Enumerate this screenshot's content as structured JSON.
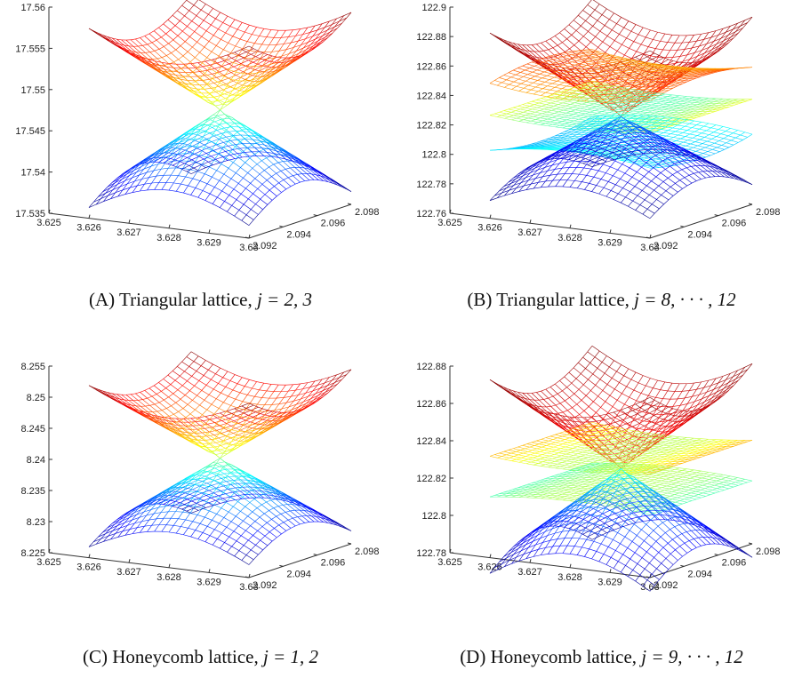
{
  "chart_data": [
    {
      "type": "surface",
      "caption": {
        "label": "(A)",
        "text": "Triangular lattice, ",
        "math": "j = 2, 3"
      },
      "x_ticks": [
        "3.625",
        "3.626",
        "3.627",
        "3.628",
        "3.629",
        "3.63"
      ],
      "y_ticks": [
        "2.092",
        "2.094",
        "2.096",
        "2.098"
      ],
      "z_ticks": [
        "17.535",
        "17.54",
        "17.545",
        "17.55",
        "17.555",
        "17.56"
      ],
      "zlim": [
        17.535,
        17.56
      ],
      "sheets": [
        {
          "shape": "cone_up",
          "center": 17.547,
          "amplitude": 0.0105,
          "color_range": [
            0.55,
            1.0
          ]
        },
        {
          "shape": "cone_down",
          "center": 17.547,
          "amplitude": 0.0105,
          "color_range": [
            0.0,
            0.5
          ]
        }
      ]
    },
    {
      "type": "surface",
      "caption": {
        "label": "(B)",
        "text": "Triangular lattice, ",
        "math": "j = 8, · · · , 12"
      },
      "x_ticks": [
        "3.625",
        "3.626",
        "3.627",
        "3.628",
        "3.629",
        "3.63"
      ],
      "y_ticks": [
        "2.092",
        "2.094",
        "2.096",
        "2.098"
      ],
      "z_ticks": [
        "122.76",
        "122.78",
        "122.8",
        "122.82",
        "122.84",
        "122.86",
        "122.88",
        "122.9"
      ],
      "zlim": [
        122.76,
        122.9
      ],
      "sheets": [
        {
          "shape": "cone_up",
          "center": 122.823,
          "amplitude": 0.06,
          "color_range": [
            0.8,
            1.0
          ]
        },
        {
          "shape": "warped",
          "center": 122.85,
          "amplitude": 0.01,
          "color_range": [
            0.7,
            0.8
          ]
        },
        {
          "shape": "flat",
          "center": 122.826,
          "amplitude": 0.006,
          "color_range": [
            0.45,
            0.6
          ]
        },
        {
          "shape": "warped",
          "center": 122.806,
          "amplitude": -0.01,
          "color_range": [
            0.3,
            0.4
          ]
        },
        {
          "shape": "cone_down",
          "center": 122.823,
          "amplitude": 0.05,
          "color_range": [
            0.0,
            0.25
          ]
        }
      ]
    },
    {
      "type": "surface",
      "caption": {
        "label": "(C)",
        "text": "Honeycomb lattice, ",
        "math": "j = 1, 2"
      },
      "x_ticks": [
        "3.625",
        "3.626",
        "3.627",
        "3.628",
        "3.629",
        "3.63"
      ],
      "y_ticks": [
        "2.092",
        "2.094",
        "2.096",
        "2.098"
      ],
      "z_ticks": [
        "8.225",
        "8.23",
        "8.235",
        "8.24",
        "8.245",
        "8.25",
        "8.255"
      ],
      "zlim": [
        8.225,
        8.255
      ],
      "sheets": [
        {
          "shape": "cone_up",
          "center": 8.2395,
          "amplitude": 0.0125,
          "color_range": [
            0.55,
            1.0
          ]
        },
        {
          "shape": "cone_down",
          "center": 8.2395,
          "amplitude": 0.0125,
          "color_range": [
            0.0,
            0.5
          ]
        }
      ]
    },
    {
      "type": "surface",
      "caption": {
        "label": "(D)",
        "text": "Honeycomb lattice, ",
        "math": "j = 9, · · · , 12"
      },
      "x_ticks": [
        "3.625",
        "3.626",
        "3.627",
        "3.628",
        "3.629",
        "3.63"
      ],
      "y_ticks": [
        "2.092",
        "2.094",
        "2.096",
        "2.098"
      ],
      "z_ticks": [
        "122.78",
        "122.8",
        "122.82",
        "122.84",
        "122.86",
        "122.88"
      ],
      "zlim": [
        122.78,
        122.88
      ],
      "sheets": [
        {
          "shape": "cone_up",
          "center": 122.823,
          "amplitude": 0.05,
          "color_range": [
            0.8,
            1.0
          ]
        },
        {
          "shape": "flat",
          "center": 122.831,
          "amplitude": 0.005,
          "color_range": [
            0.55,
            0.7
          ]
        },
        {
          "shape": "flat",
          "center": 122.815,
          "amplitude": -0.005,
          "color_range": [
            0.45,
            0.55
          ]
        },
        {
          "shape": "cone_down",
          "center": 122.823,
          "amplitude": 0.05,
          "color_range": [
            0.0,
            0.4
          ]
        }
      ]
    }
  ]
}
